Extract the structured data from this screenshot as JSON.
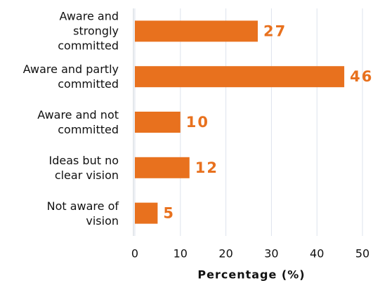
{
  "chart_data": {
    "type": "bar",
    "orientation": "horizontal",
    "categories": [
      "Aware and\nstrongly\ncommitted",
      "Aware and partly\ncommitted",
      "Aware and not\ncommitted",
      "Ideas but no\nclear vision",
      "Not aware of\nvision"
    ],
    "values": [
      27,
      46,
      10,
      12,
      5
    ],
    "color": "#e8711e",
    "xlabel": "Percentage (%)",
    "xlim": [
      0,
      52
    ],
    "xticks": [
      0,
      10,
      20,
      30,
      40,
      50
    ],
    "grid": true
  }
}
